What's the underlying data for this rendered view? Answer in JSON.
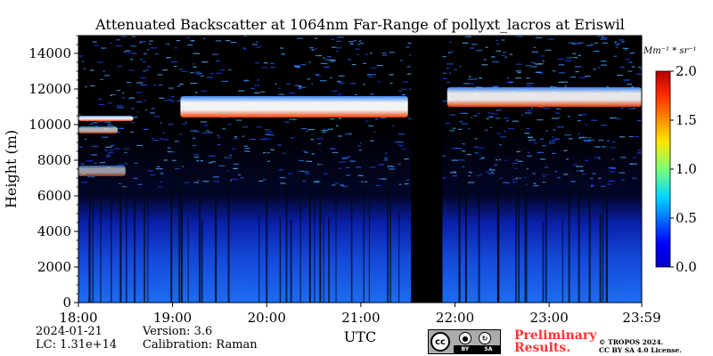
{
  "chart_data": {
    "type": "heatmap",
    "title": "Attenuated Backscatter at 1064nm Far-Range of pollyxt_lacros at Eriswil",
    "xlabel": "UTC",
    "ylabel": "Height (m)",
    "x_ticks": [
      "18:00",
      "19:00",
      "20:00",
      "21:00",
      "22:00",
      "23:00",
      "23:59"
    ],
    "x_range_hours": [
      18.0,
      23.983
    ],
    "y_ticks": [
      "0",
      "2000",
      "4000",
      "6000",
      "8000",
      "10000",
      "12000",
      "14000"
    ],
    "ylim": [
      0,
      15000
    ],
    "colorbar": {
      "label": "Mm⁻¹ * sr⁻¹",
      "ticks": [
        "0.0",
        "0.5",
        "1.0",
        "1.5",
        "2.0"
      ],
      "range": [
        0.0,
        2.0
      ],
      "colormap": "jet"
    },
    "no_data_interval_utc": [
      "21:32",
      "21:52"
    ],
    "cloud_layers": [
      {
        "start_utc": "18:00",
        "end_utc": "18:35",
        "base_m": 10200,
        "top_m": 10500,
        "intensity": 1.8
      },
      {
        "start_utc": "18:00",
        "end_utc": "18:25",
        "base_m": 9500,
        "top_m": 9900,
        "intensity": 1.4
      },
      {
        "start_utc": "18:00",
        "end_utc": "18:30",
        "base_m": 7100,
        "top_m": 7700,
        "intensity": 1.2
      },
      {
        "start_utc": "19:05",
        "end_utc": "21:30",
        "base_m": 10400,
        "top_m": 11600,
        "intensity": 1.9
      },
      {
        "start_utc": "21:55",
        "end_utc": "23:59",
        "base_m": 11000,
        "top_m": 12100,
        "intensity": 1.8
      }
    ]
  },
  "footer": {
    "date": "2024-01-21",
    "lc": "LC: 1.31e+14",
    "version": "Version: 3.6",
    "calibration": "Calibration: Raman",
    "preliminary_line1": "Preliminary",
    "preliminary_line2": "Results.",
    "copyright_line1": "© TROPOS 2024.",
    "copyright_line2": "CC BY SA 4.0 License.",
    "badge_main": "cc",
    "badge_by": "BY",
    "badge_sa": "SA"
  },
  "colors": {
    "no_data": "#000000",
    "preliminary": "#ff3333"
  }
}
